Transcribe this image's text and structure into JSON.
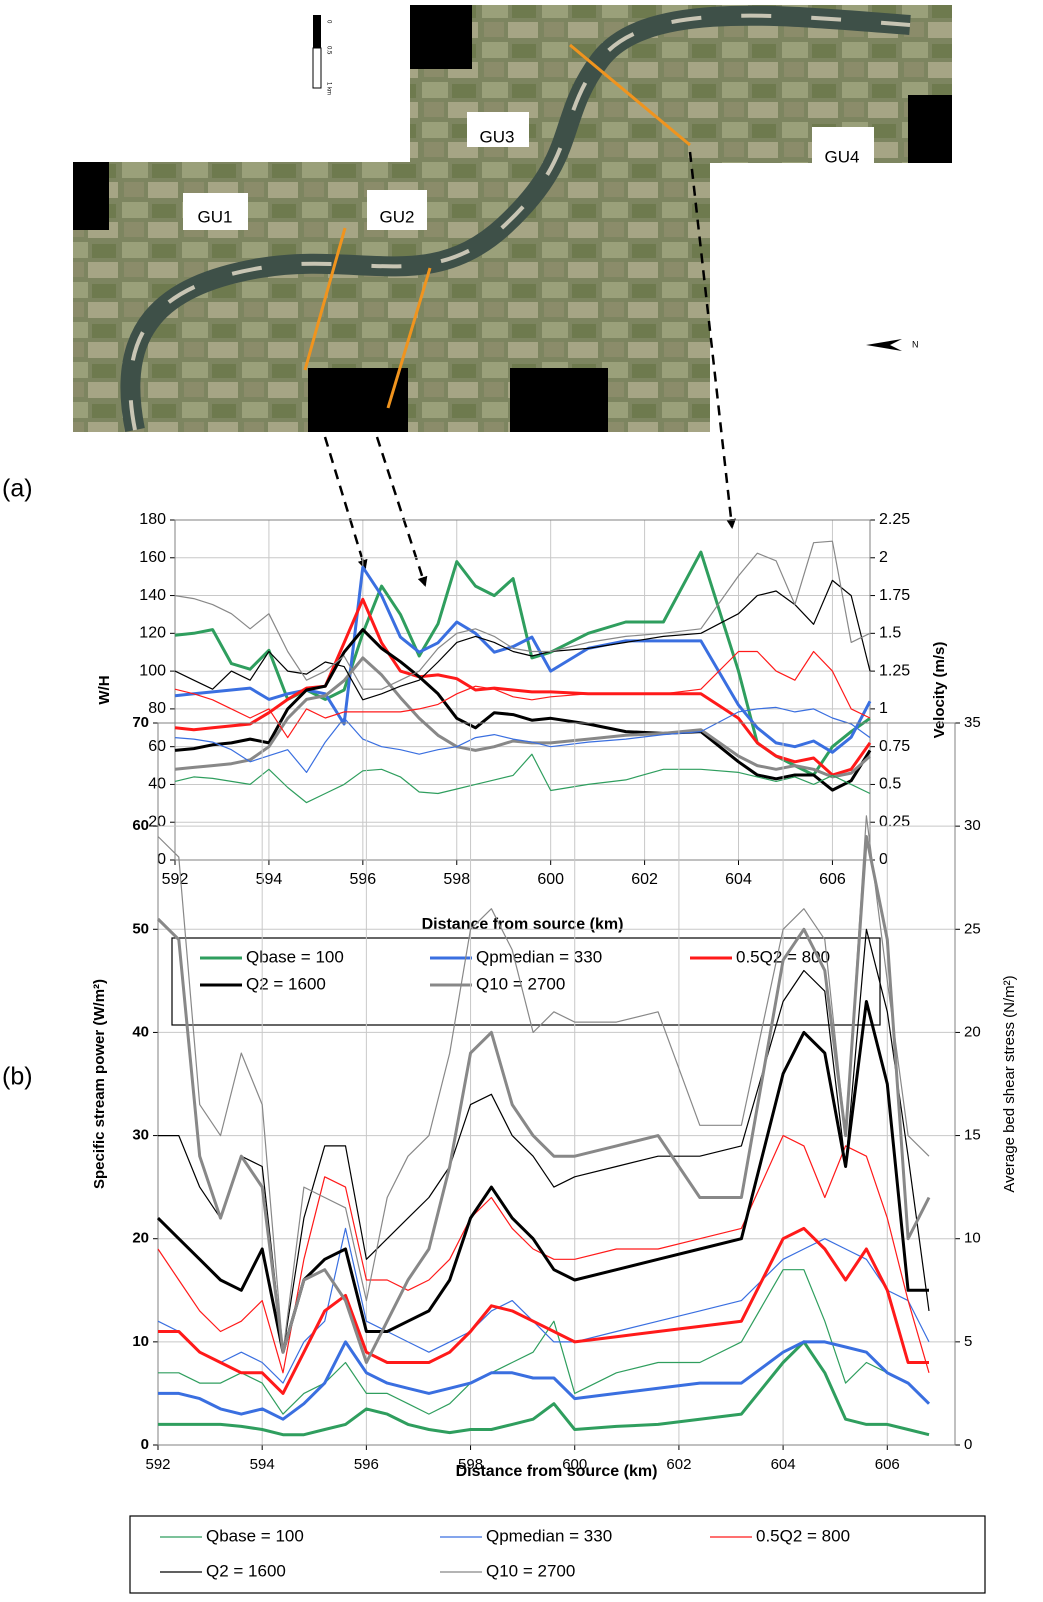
{
  "map": {
    "labels": [
      "GU1",
      "GU2",
      "GU3",
      "GU4"
    ],
    "scale": [
      "0",
      "0.5",
      "1 km"
    ],
    "north": "N"
  },
  "chart_data": [
    {
      "type": "line",
      "panel": "(a)",
      "x_label": "Distance from source (km)",
      "y_label": "W/H",
      "y2_label": "Velocity (m/s)",
      "xlim": [
        592,
        606.8
      ],
      "xticks": [
        592,
        594,
        596,
        598,
        600,
        602,
        604,
        606
      ],
      "ylim": [
        0,
        180
      ],
      "yticks": [
        0,
        20,
        40,
        60,
        80,
        100,
        120,
        140,
        160,
        180
      ],
      "y2lim": [
        0,
        2.25
      ],
      "y2ticks": [
        0,
        0.25,
        0.5,
        0.75,
        1,
        1.25,
        1.5,
        1.75,
        2,
        2.25
      ],
      "grid": true,
      "x": [
        592,
        592.4,
        592.8,
        593.2,
        593.6,
        594,
        594.4,
        594.8,
        595.2,
        595.6,
        596,
        596.4,
        596.8,
        597.2,
        597.6,
        598,
        598.4,
        598.8,
        599.2,
        599.6,
        600,
        600.8,
        601.6,
        602.4,
        603.2,
        604,
        604.4,
        604.8,
        605.2,
        605.6,
        606,
        606.4,
        606.8
      ],
      "series": [
        {
          "name": "Qbase = 100",
          "color": "#2f9e5e",
          "width": 3,
          "values": [
            119,
            120,
            122,
            104,
            101,
            111,
            85,
            90,
            85,
            90,
            120,
            145,
            130,
            108,
            125,
            158,
            145,
            140,
            149,
            107,
            110,
            120,
            126,
            126,
            163,
            100,
            62,
            55,
            50,
            45,
            60,
            68,
            75
          ]
        },
        {
          "name": "Qpmedian = 330",
          "color": "#3a6fe0",
          "width": 3,
          "values": [
            87,
            88,
            89,
            90,
            91,
            85,
            88,
            90,
            88,
            72,
            155,
            140,
            118,
            110,
            115,
            126,
            120,
            110,
            113,
            118,
            100,
            112,
            116,
            116,
            116,
            82,
            70,
            62,
            60,
            63,
            57,
            65,
            84
          ]
        },
        {
          "name": "0.5Q2 = 800",
          "color": "#ff1a1a",
          "width": 3,
          "values": [
            70,
            69,
            70,
            71,
            72,
            78,
            85,
            91,
            92,
            115,
            138,
            115,
            100,
            97,
            98,
            96,
            90,
            91,
            90,
            89,
            89,
            88,
            88,
            88,
            88,
            75,
            62,
            55,
            52,
            54,
            45,
            48,
            62
          ]
        },
        {
          "name": "Q2 = 1600",
          "color": "#000000",
          "width": 3,
          "values": [
            58,
            59,
            61,
            62,
            64,
            62,
            80,
            90,
            92,
            110,
            122,
            112,
            105,
            97,
            88,
            75,
            70,
            78,
            77,
            74,
            75,
            72,
            68,
            67,
            68,
            52,
            45,
            43,
            45,
            45,
            37,
            42,
            58
          ]
        },
        {
          "name": "Q10 = 2700",
          "color": "#888888",
          "width": 3,
          "values": [
            48,
            49,
            50,
            51,
            53,
            60,
            75,
            85,
            87,
            95,
            107,
            98,
            86,
            75,
            66,
            60,
            58,
            60,
            63,
            62,
            62,
            64,
            66,
            67,
            69,
            55,
            50,
            48,
            50,
            48,
            44,
            46,
            55
          ]
        },
        {
          "name": "Qbase = 100",
          "color": "#2f9e5e",
          "width": 1.2,
          "axis": "y2",
          "values": [
            0.52,
            0.55,
            0.54,
            0.52,
            0.5,
            0.6,
            0.48,
            0.38,
            0.44,
            0.5,
            0.59,
            0.6,
            0.55,
            0.45,
            0.44,
            0.47,
            0.5,
            0.53,
            0.56,
            0.7,
            0.46,
            0.5,
            0.53,
            0.6,
            0.6,
            0.58,
            0.55,
            0.52,
            0.55,
            0.5,
            0.56,
            0.5,
            0.44
          ]
        },
        {
          "name": "Qpmedian = 330",
          "color": "#3a6fe0",
          "width": 1.2,
          "axis": "y2",
          "values": [
            0.81,
            0.8,
            0.78,
            0.73,
            0.65,
            0.69,
            0.73,
            0.58,
            0.78,
            0.94,
            0.8,
            0.75,
            0.73,
            0.7,
            0.73,
            0.75,
            0.81,
            0.83,
            0.8,
            0.78,
            0.75,
            0.78,
            0.8,
            0.83,
            0.85,
            0.98,
            1,
            1.01,
            0.98,
            1,
            0.94,
            0.9,
            0.81
          ]
        },
        {
          "name": "0.5Q2 = 800",
          "color": "#ff1a1a",
          "width": 1.2,
          "axis": "y2",
          "values": [
            1.13,
            1.1,
            1.06,
            1,
            0.94,
            1,
            0.81,
            1,
            0.94,
            0.98,
            0.98,
            0.98,
            0.98,
            1,
            1.03,
            1.1,
            1.15,
            1.13,
            1.08,
            1.06,
            1.08,
            1.1,
            1.1,
            1.1,
            1.13,
            1.38,
            1.38,
            1.25,
            1.19,
            1.38,
            1.25,
            1,
            0.94
          ]
        },
        {
          "name": "Q2 = 1600",
          "color": "#000000",
          "width": 1.2,
          "axis": "y2",
          "values": [
            1.25,
            1.19,
            1.13,
            1.25,
            1.19,
            1.38,
            1.25,
            1.23,
            1.31,
            1.28,
            1.06,
            1.1,
            1.15,
            1.19,
            1.31,
            1.44,
            1.48,
            1.44,
            1.38,
            1.35,
            1.38,
            1.4,
            1.44,
            1.48,
            1.5,
            1.63,
            1.75,
            1.78,
            1.69,
            1.56,
            1.85,
            1.75,
            1.25
          ]
        },
        {
          "name": "Q10 = 2700",
          "color": "#888888",
          "width": 1.2,
          "axis": "y2",
          "values": [
            1.75,
            1.73,
            1.69,
            1.63,
            1.53,
            1.63,
            1.38,
            1.19,
            1.25,
            1.35,
            1.13,
            1.13,
            1.19,
            1.25,
            1.4,
            1.5,
            1.53,
            1.48,
            1.4,
            1.38,
            1.38,
            1.44,
            1.48,
            1.5,
            1.53,
            1.88,
            2.03,
            1.98,
            1.69,
            2.1,
            2.11,
            1.44,
            1.5
          ]
        }
      ]
    },
    {
      "type": "line",
      "panel": "(b)",
      "x_label": "Distance from source (km)",
      "y_label": "Specific stream power (W/m²)",
      "y2_label": "Average bed shear stress (N/m²)",
      "xlim": [
        592,
        607.3
      ],
      "xticks": [
        592,
        594,
        596,
        598,
        600,
        602,
        604,
        606
      ],
      "ylim": [
        0,
        70
      ],
      "yticks": [
        0,
        10,
        20,
        30,
        40,
        50,
        60,
        70
      ],
      "y2lim": [
        0,
        35
      ],
      "y2ticks": [
        0,
        5,
        10,
        15,
        20,
        25,
        30,
        35
      ],
      "grid": true,
      "x": [
        592,
        592.4,
        592.8,
        593.2,
        593.6,
        594,
        594.4,
        594.8,
        595.2,
        595.6,
        596,
        596.4,
        596.8,
        597.2,
        597.6,
        598,
        598.4,
        598.8,
        599.2,
        599.6,
        600,
        600.8,
        601.6,
        602.4,
        603.2,
        604,
        604.4,
        604.8,
        605.2,
        605.6,
        606,
        606.4,
        606.8
      ],
      "series": [
        {
          "name": "Qbase = 100",
          "color": "#2f9e5e",
          "width": 1.2,
          "values": [
            7,
            7,
            6,
            6,
            7,
            6,
            3,
            5,
            6,
            8,
            5,
            5,
            4,
            3,
            4,
            6,
            7,
            8,
            9,
            12,
            5,
            7,
            8,
            8,
            10,
            17,
            17,
            12,
            6,
            8,
            7,
            6,
            4
          ]
        },
        {
          "name": "Qpmedian = 330",
          "color": "#3a6fe0",
          "width": 1.2,
          "values": [
            12,
            11,
            9,
            8,
            9,
            8,
            6,
            10,
            12,
            21,
            12,
            11,
            10,
            9,
            10,
            11,
            13,
            14,
            12,
            10,
            10,
            11,
            12,
            13,
            14,
            18,
            19,
            20,
            19,
            18,
            15,
            14,
            10
          ]
        },
        {
          "name": "0.5Q2 = 800",
          "color": "#ff1a1a",
          "width": 1.2,
          "values": [
            19,
            16,
            13,
            11,
            12,
            14,
            7,
            18,
            26,
            25,
            16,
            16,
            15,
            16,
            18,
            22,
            24,
            21,
            19,
            18,
            18,
            19,
            19,
            20,
            21,
            30,
            29,
            24,
            29,
            28,
            22,
            14,
            7
          ]
        },
        {
          "name": "Q2 = 1600",
          "color": "#000000",
          "width": 1.2,
          "values": [
            30,
            30,
            25,
            22,
            28,
            27,
            9,
            22,
            29,
            29,
            18,
            20,
            22,
            24,
            27,
            33,
            34,
            30,
            28,
            25,
            26,
            27,
            28,
            28,
            29,
            43,
            46,
            44,
            27,
            50,
            42,
            28,
            13
          ]
        },
        {
          "name": "Q10 = 2700",
          "color": "#888888",
          "width": 1.2,
          "values": [
            59,
            57,
            33,
            30,
            38,
            33,
            9,
            25,
            24,
            23,
            14,
            24,
            28,
            30,
            38,
            50,
            52,
            48,
            40,
            42,
            41,
            41,
            42,
            31,
            31,
            50,
            52,
            49,
            30,
            61,
            45,
            30,
            28
          ]
        },
        {
          "name": "Qbase = 100",
          "color": "#2f9e5e",
          "width": 3,
          "axis": "y2",
          "values": [
            1,
            1,
            1,
            1,
            0.9,
            0.75,
            0.5,
            0.5,
            0.75,
            1,
            1.75,
            1.5,
            1,
            0.75,
            0.6,
            0.75,
            0.75,
            1,
            1.25,
            2,
            0.75,
            0.9,
            1,
            1.25,
            1.5,
            4,
            5,
            3.5,
            1.25,
            1,
            1,
            0.75,
            0.5
          ]
        },
        {
          "name": "Qpmedian = 330",
          "color": "#3a6fe0",
          "width": 3,
          "axis": "y2",
          "values": [
            2.5,
            2.5,
            2.25,
            1.75,
            1.5,
            1.75,
            1.25,
            2,
            3,
            5,
            3.5,
            3,
            2.75,
            2.5,
            2.75,
            3,
            3.5,
            3.5,
            3.25,
            3.25,
            2.25,
            2.5,
            2.75,
            3,
            3,
            4.5,
            5,
            5,
            4.75,
            4.5,
            3.5,
            3,
            2
          ]
        },
        {
          "name": "0.5Q2 = 800",
          "color": "#ff1a1a",
          "width": 3,
          "axis": "y2",
          "values": [
            5.5,
            5.5,
            4.5,
            4,
            3.5,
            3.5,
            2.5,
            4.5,
            6.5,
            7.25,
            4.5,
            4,
            4,
            4,
            4.5,
            5.5,
            6.75,
            6.5,
            6,
            5.5,
            5,
            5.25,
            5.5,
            5.75,
            6,
            10,
            10.5,
            9.5,
            8,
            9.5,
            7.5,
            4,
            4
          ]
        },
        {
          "name": "Q2 = 1600",
          "color": "#000000",
          "width": 3,
          "axis": "y2",
          "values": [
            11,
            10,
            9,
            8,
            7.5,
            9.5,
            4.5,
            8,
            9,
            9.5,
            5.5,
            5.5,
            6,
            6.5,
            8,
            11,
            12.5,
            11,
            10,
            8.5,
            8,
            8.5,
            9,
            9.5,
            10,
            18,
            20,
            19,
            13.5,
            21.5,
            17.5,
            7.5,
            7.5
          ]
        },
        {
          "name": "Q10 = 2700",
          "color": "#888888",
          "width": 3,
          "axis": "y2",
          "values": [
            25.5,
            24.5,
            14,
            11,
            14,
            12.5,
            4.5,
            8,
            8.5,
            7,
            4,
            6,
            8,
            9.5,
            13.5,
            19,
            20,
            16.5,
            15,
            14,
            14,
            14.5,
            15,
            12,
            12,
            23.5,
            25,
            23,
            15,
            29.5,
            24.5,
            10,
            12
          ]
        }
      ]
    }
  ]
}
